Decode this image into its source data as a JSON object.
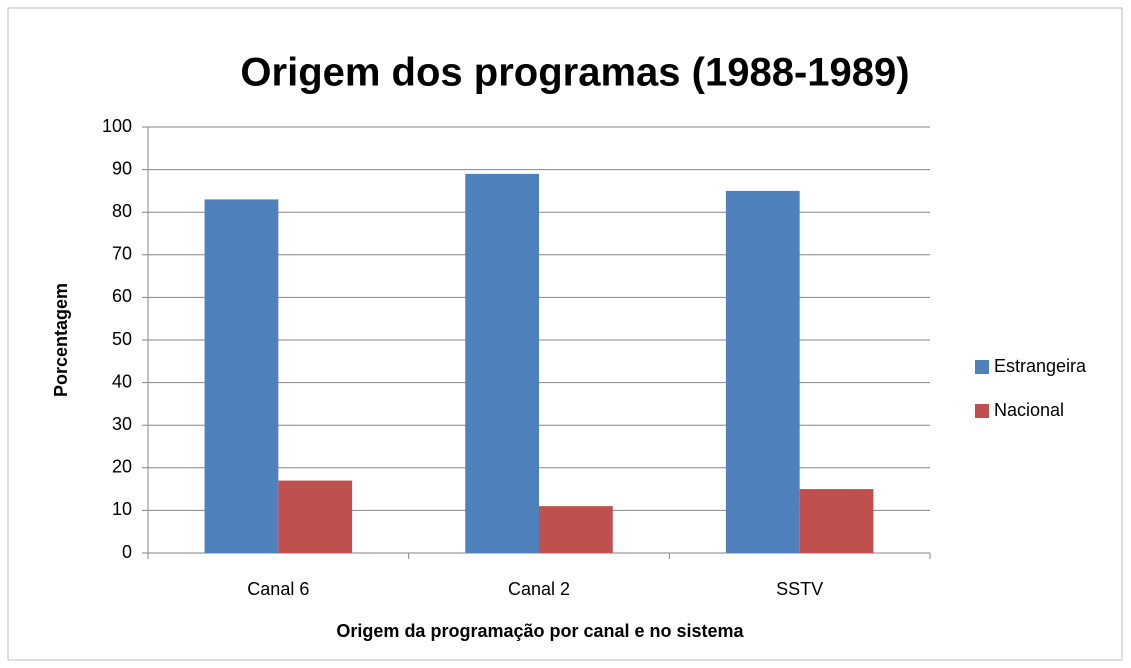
{
  "chart_data": {
    "type": "bar",
    "title": "Origem dos programas (1988-1989)",
    "x_label": "Origem da programação por canal e no sistema",
    "y_label": "Porcentagem",
    "categories": [
      "Canal 6",
      "Canal 2",
      "SSTV"
    ],
    "series": [
      {
        "name": "Estrangeira",
        "color": "#4f81bd",
        "values": [
          83,
          89,
          85
        ]
      },
      {
        "name": "Nacional",
        "color": "#c0504d",
        "values": [
          17,
          11,
          15
        ]
      }
    ],
    "ylim": [
      0,
      100
    ],
    "yticks": [
      0,
      10,
      20,
      30,
      40,
      50,
      60,
      70,
      80,
      90,
      100
    ],
    "grid": true,
    "legend": "right"
  }
}
